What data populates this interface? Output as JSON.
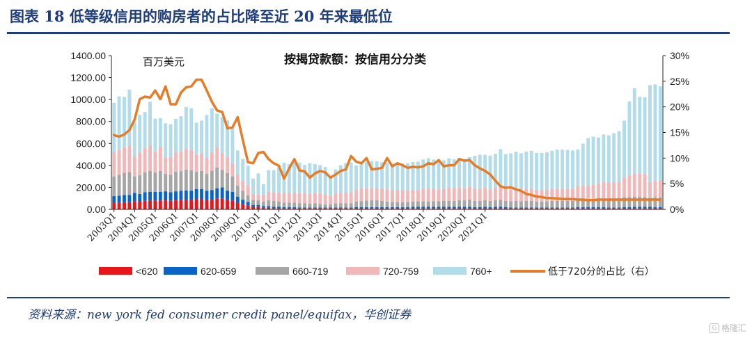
{
  "header": {
    "title": "图表 18   低等级信用的购房者的占比降至近 20 年来最低位"
  },
  "source": "资料来源：new york fed consumer credit panel/equifax，华创证券",
  "watermark": "格隆汇",
  "chart_data": {
    "type": "bar",
    "title": "按揭贷款额：按信用分分类",
    "unit_label": "百万美元",
    "stacked": true,
    "ylim": [
      0,
      1400
    ],
    "y_ticks": [
      "0.00",
      "200.00",
      "400.00",
      "600.00",
      "800.00",
      "1000.00",
      "1200.00",
      "1400.00"
    ],
    "y2lim": [
      0,
      30
    ],
    "y2_ticks": [
      "0%",
      "5%",
      "10%",
      "15%",
      "20%",
      "25%",
      "30%"
    ],
    "x_tick_labels": [
      "2003Q1",
      "2004Q1",
      "2005Q1",
      "2006Q1",
      "2007Q1",
      "2008Q1",
      "2009Q1",
      "2010Q1",
      "2011Q1",
      "2012Q1",
      "2013Q1",
      "2014Q1",
      "2015Q1",
      "2016Q1",
      "2017Q1",
      "2018Q1",
      "2019Q1",
      "2020Q1",
      "2021Q1"
    ],
    "legend_position": "bottom",
    "series": [
      {
        "name": "<620",
        "color": "#e8161b",
        "values": [
          60,
          62,
          65,
          65,
          75,
          70,
          78,
          80,
          80,
          80,
          82,
          78,
          82,
          84,
          86,
          85,
          92,
          92,
          85,
          88,
          96,
          100,
          85,
          80,
          58,
          44,
          34,
          20,
          20,
          15,
          15,
          12,
          12,
          10,
          10,
          10,
          8,
          8,
          8,
          8,
          8,
          8,
          8,
          8,
          8,
          8,
          8,
          10,
          10,
          10,
          10,
          10,
          10,
          10,
          10,
          10,
          10,
          10,
          12,
          12,
          12,
          12,
          12,
          12,
          12,
          12,
          12,
          12,
          12,
          12,
          10,
          10,
          12,
          10,
          12,
          12,
          10,
          8,
          8,
          8,
          8,
          8,
          8,
          8,
          8,
          8,
          8,
          8,
          8,
          8,
          10,
          10,
          10,
          10,
          10,
          10,
          8,
          8,
          8,
          10,
          10,
          12,
          12,
          12,
          12,
          10,
          10
        ]
      },
      {
        "name": "620-659",
        "color": "#0a63c9",
        "values": [
          60,
          62,
          65,
          65,
          75,
          70,
          78,
          80,
          80,
          80,
          82,
          78,
          82,
          84,
          86,
          85,
          92,
          92,
          85,
          88,
          96,
          100,
          85,
          80,
          58,
          44,
          34,
          20,
          20,
          15,
          15,
          12,
          12,
          10,
          10,
          10,
          8,
          8,
          8,
          8,
          8,
          8,
          8,
          8,
          8,
          8,
          8,
          10,
          10,
          10,
          10,
          10,
          10,
          10,
          10,
          10,
          10,
          10,
          12,
          12,
          12,
          12,
          12,
          12,
          12,
          12,
          12,
          12,
          12,
          12,
          10,
          10,
          12,
          10,
          12,
          12,
          10,
          8,
          8,
          8,
          8,
          8,
          8,
          8,
          8,
          8,
          8,
          8,
          8,
          8,
          10,
          10,
          10,
          10,
          10,
          10,
          8,
          8,
          8,
          10,
          10,
          12,
          12,
          12,
          12,
          10,
          10
        ]
      },
      {
        "name": "660-719",
        "color": "#a6a6a6",
        "values": [
          180,
          190,
          200,
          210,
          150,
          170,
          180,
          190,
          175,
          190,
          160,
          160,
          180,
          180,
          190,
          185,
          160,
          165,
          155,
          175,
          190,
          160,
          160,
          140,
          100,
          82,
          60,
          45,
          42,
          40,
          52,
          52,
          48,
          42,
          42,
          42,
          40,
          38,
          35,
          38,
          32,
          28,
          30,
          38,
          38,
          38,
          40,
          50,
          55,
          60,
          62,
          62,
          56,
          50,
          48,
          46,
          45,
          46,
          48,
          50,
          50,
          48,
          50,
          50,
          52,
          54,
          54,
          58,
          58,
          64,
          56,
          56,
          60,
          56,
          60,
          64,
          58,
          58,
          60,
          58,
          60,
          60,
          54,
          54,
          56,
          60,
          62,
          60,
          60,
          60,
          66,
          68,
          68,
          72,
          74,
          80,
          78,
          80,
          80,
          88,
          92,
          90,
          92,
          88,
          80,
          88,
          90
        ]
      },
      {
        "name": "720-759",
        "color": "#f0b8b8",
        "values": [
          220,
          225,
          235,
          240,
          180,
          210,
          220,
          230,
          190,
          220,
          150,
          160,
          180,
          180,
          190,
          185,
          155,
          160,
          145,
          170,
          185,
          150,
          150,
          120,
          100,
          90,
          90,
          55,
          55,
          60,
          80,
          80,
          82,
          84,
          90,
          92,
          90,
          92,
          90,
          96,
          100,
          92,
          80,
          90,
          92,
          98,
          100,
          110,
          116,
          112,
          112,
          108,
          110,
          112,
          110,
          110,
          112,
          110,
          100,
          100,
          110,
          112,
          110,
          108,
          110,
          118,
          115,
          116,
          110,
          120,
          110,
          110,
          112,
          104,
          112,
          120,
          106,
          106,
          108,
          106,
          110,
          108,
          104,
          104,
          106,
          108,
          110,
          112,
          110,
          110,
          130,
          130,
          130,
          130,
          140,
          152,
          150,
          148,
          156,
          180,
          200,
          210,
          210,
          210,
          148,
          150,
          150
        ]
      },
      {
        "name": "760+",
        "color": "#b2dce9",
        "values": [
          450,
          490,
          460,
          510,
          320,
          340,
          330,
          400,
          300,
          260,
          310,
          300,
          300,
          320,
          380,
          380,
          290,
          300,
          390,
          400,
          305,
          330,
          330,
          320,
          220,
          200,
          180,
          140,
          190,
          100,
          195,
          200,
          230,
          278,
          260,
          268,
          280,
          260,
          280,
          262,
          254,
          250,
          172,
          220,
          255,
          270,
          270,
          220,
          230,
          240,
          246,
          248,
          243,
          240,
          235,
          236,
          240,
          244,
          258,
          260,
          270,
          282,
          270,
          270,
          260,
          268,
          262,
          270,
          260,
          268,
          302,
          312,
          300,
          310,
          310,
          340,
          320,
          330,
          340,
          330,
          340,
          348,
          340,
          340,
          342,
          350,
          356,
          356,
          356,
          350,
          330,
          380,
          430,
          440,
          420,
          430,
          430,
          450,
          460,
          520,
          670,
          780,
          700,
          700,
          880,
          880,
          860
        ]
      },
      {
        "name": "低于720分的占比（右）",
        "axis": "right",
        "type": "line",
        "color": "#e47c28",
        "values": [
          14.5,
          14.2,
          14.6,
          15.5,
          17.5,
          21.5,
          22.0,
          21.8,
          23.2,
          21.5,
          24.0,
          20.5,
          20.5,
          22.8,
          23.8,
          24.0,
          25.3,
          25.3,
          23.2,
          21.0,
          19.3,
          19.0,
          15.8,
          16.0,
          18.0,
          13.5,
          9.2,
          9.0,
          11.0,
          11.2,
          9.8,
          9.0,
          8.5,
          6.0,
          8.0,
          9.8,
          7.6,
          7.4,
          6.2,
          7.0,
          7.5,
          7.2,
          6.2,
          6.8,
          7.5,
          7.8,
          10.4,
          9.3,
          9.0,
          10.0,
          7.8,
          7.9,
          8.1,
          10.0,
          8.4,
          9.0,
          8.6,
          8.1,
          8.3,
          8.2,
          8.4,
          9.0,
          8.8,
          9.6,
          8.4,
          8.6,
          8.6,
          9.8,
          9.5,
          9.6,
          8.6,
          8.0,
          7.5,
          6.8,
          5.6,
          4.5,
          4.2,
          4.3,
          3.9,
          3.6,
          3.0,
          2.8,
          2.5,
          2.4,
          2.2,
          2.2,
          2.1,
          2.0,
          2.0,
          2.0,
          1.9,
          1.9,
          1.8,
          1.8,
          1.9,
          1.9,
          1.9,
          1.9,
          1.9,
          1.9,
          1.9,
          1.9,
          1.9,
          1.9,
          1.9,
          1.9,
          1.9
        ]
      }
    ]
  }
}
